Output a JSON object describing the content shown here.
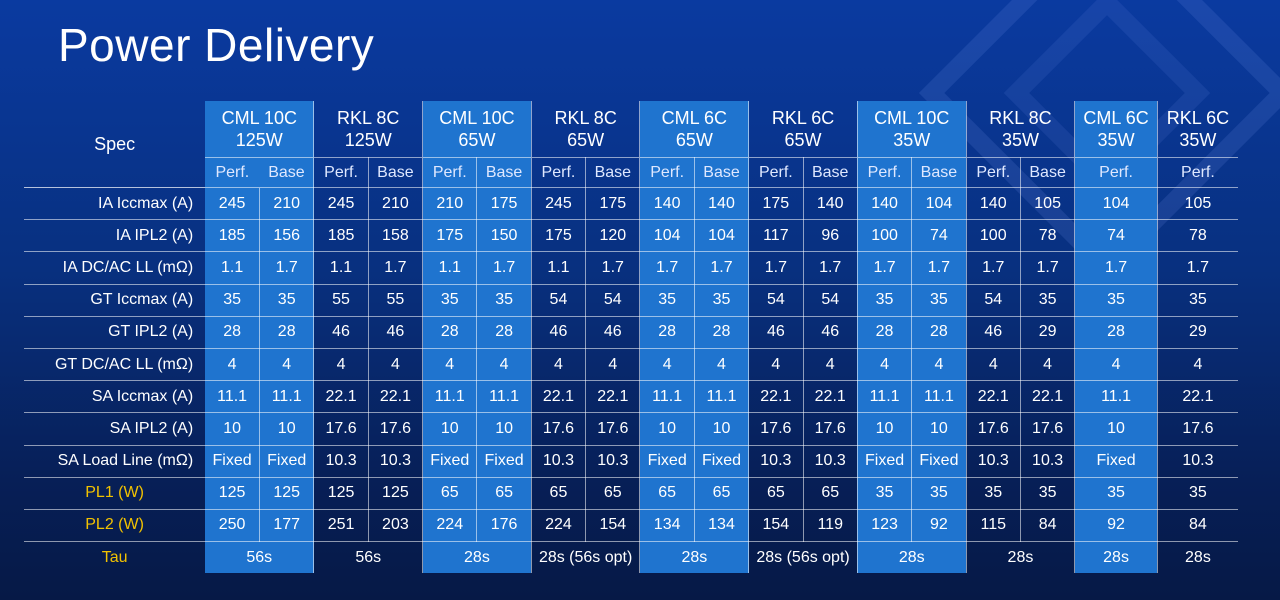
{
  "title": "Power Delivery",
  "spec_header": "Spec",
  "columns": [
    {
      "line1": "CML 10C",
      "line2": "125W",
      "subs": [
        "Perf.",
        "Base"
      ],
      "shaded": true
    },
    {
      "line1": "RKL 8C",
      "line2": "125W",
      "subs": [
        "Perf.",
        "Base"
      ],
      "shaded": false
    },
    {
      "line1": "CML 10C",
      "line2": "65W",
      "subs": [
        "Perf.",
        "Base"
      ],
      "shaded": true
    },
    {
      "line1": "RKL 8C",
      "line2": "65W",
      "subs": [
        "Perf.",
        "Base"
      ],
      "shaded": false
    },
    {
      "line1": "CML 6C",
      "line2": "65W",
      "subs": [
        "Perf.",
        "Base"
      ],
      "shaded": true
    },
    {
      "line1": "RKL 6C",
      "line2": "65W",
      "subs": [
        "Perf.",
        "Base"
      ],
      "shaded": false
    },
    {
      "line1": "CML 10C",
      "line2": "35W",
      "subs": [
        "Perf.",
        "Base"
      ],
      "shaded": true
    },
    {
      "line1": "RKL 8C",
      "line2": "35W",
      "subs": [
        "Perf.",
        "Base"
      ],
      "shaded": false
    },
    {
      "line1": "CML 6C",
      "line2": "35W",
      "subs": [
        "Perf."
      ],
      "shaded": true
    },
    {
      "line1": "RKL 6C",
      "line2": "35W",
      "subs": [
        "Perf."
      ],
      "shaded": false
    }
  ],
  "rows": [
    {
      "label": "IA Iccmax (A)",
      "highlight": false,
      "values": [
        "245",
        "210",
        "245",
        "210",
        "210",
        "175",
        "245",
        "175",
        "140",
        "140",
        "175",
        "140",
        "140",
        "104",
        "140",
        "105",
        "104",
        "105"
      ]
    },
    {
      "label": "IA IPL2 (A)",
      "highlight": false,
      "values": [
        "185",
        "156",
        "185",
        "158",
        "175",
        "150",
        "175",
        "120",
        "104",
        "104",
        "117",
        "96",
        "100",
        "74",
        "100",
        "78",
        "74",
        "78"
      ]
    },
    {
      "label": "IA DC/AC LL (mΩ)",
      "highlight": false,
      "values": [
        "1.1",
        "1.7",
        "1.1",
        "1.7",
        "1.1",
        "1.7",
        "1.1",
        "1.7",
        "1.7",
        "1.7",
        "1.7",
        "1.7",
        "1.7",
        "1.7",
        "1.7",
        "1.7",
        "1.7",
        "1.7"
      ]
    },
    {
      "label": "GT Iccmax (A)",
      "highlight": false,
      "values": [
        "35",
        "35",
        "55",
        "55",
        "35",
        "35",
        "54",
        "54",
        "35",
        "35",
        "54",
        "54",
        "35",
        "35",
        "54",
        "35",
        "35",
        "35"
      ]
    },
    {
      "label": "GT IPL2 (A)",
      "highlight": false,
      "values": [
        "28",
        "28",
        "46",
        "46",
        "28",
        "28",
        "46",
        "46",
        "28",
        "28",
        "46",
        "46",
        "28",
        "28",
        "46",
        "29",
        "28",
        "29"
      ]
    },
    {
      "label": "GT DC/AC LL (mΩ)",
      "highlight": false,
      "values": [
        "4",
        "4",
        "4",
        "4",
        "4",
        "4",
        "4",
        "4",
        "4",
        "4",
        "4",
        "4",
        "4",
        "4",
        "4",
        "4",
        "4",
        "4"
      ]
    },
    {
      "label": "SA Iccmax (A)",
      "highlight": false,
      "values": [
        "11.1",
        "11.1",
        "22.1",
        "22.1",
        "11.1",
        "11.1",
        "22.1",
        "22.1",
        "11.1",
        "11.1",
        "22.1",
        "22.1",
        "11.1",
        "11.1",
        "22.1",
        "22.1",
        "11.1",
        "22.1"
      ]
    },
    {
      "label": "SA IPL2 (A)",
      "highlight": false,
      "values": [
        "10",
        "10",
        "17.6",
        "17.6",
        "10",
        "10",
        "17.6",
        "17.6",
        "10",
        "10",
        "17.6",
        "17.6",
        "10",
        "10",
        "17.6",
        "17.6",
        "10",
        "17.6"
      ]
    },
    {
      "label": "SA Load Line (mΩ)",
      "highlight": false,
      "values": [
        "Fixed",
        "Fixed",
        "10.3",
        "10.3",
        "Fixed",
        "Fixed",
        "10.3",
        "10.3",
        "Fixed",
        "Fixed",
        "10.3",
        "10.3",
        "Fixed",
        "Fixed",
        "10.3",
        "10.3",
        "Fixed",
        "10.3"
      ]
    },
    {
      "label": "PL1 (W)",
      "highlight": true,
      "values": [
        "125",
        "125",
        "125",
        "125",
        "65",
        "65",
        "65",
        "65",
        "65",
        "65",
        "65",
        "65",
        "35",
        "35",
        "35",
        "35",
        "35",
        "35"
      ]
    },
    {
      "label": "PL2 (W)",
      "highlight": true,
      "values": [
        "250",
        "177",
        "251",
        "203",
        "224",
        "176",
        "224",
        "154",
        "134",
        "134",
        "154",
        "119",
        "123",
        "92",
        "115",
        "84",
        "92",
        "84"
      ]
    }
  ],
  "tau": {
    "label": "Tau",
    "values": [
      "56s",
      "56s",
      "28s",
      "28s (56s opt)",
      "28s",
      "28s (56s opt)",
      "28s",
      "28s",
      "28s",
      "28s"
    ]
  }
}
